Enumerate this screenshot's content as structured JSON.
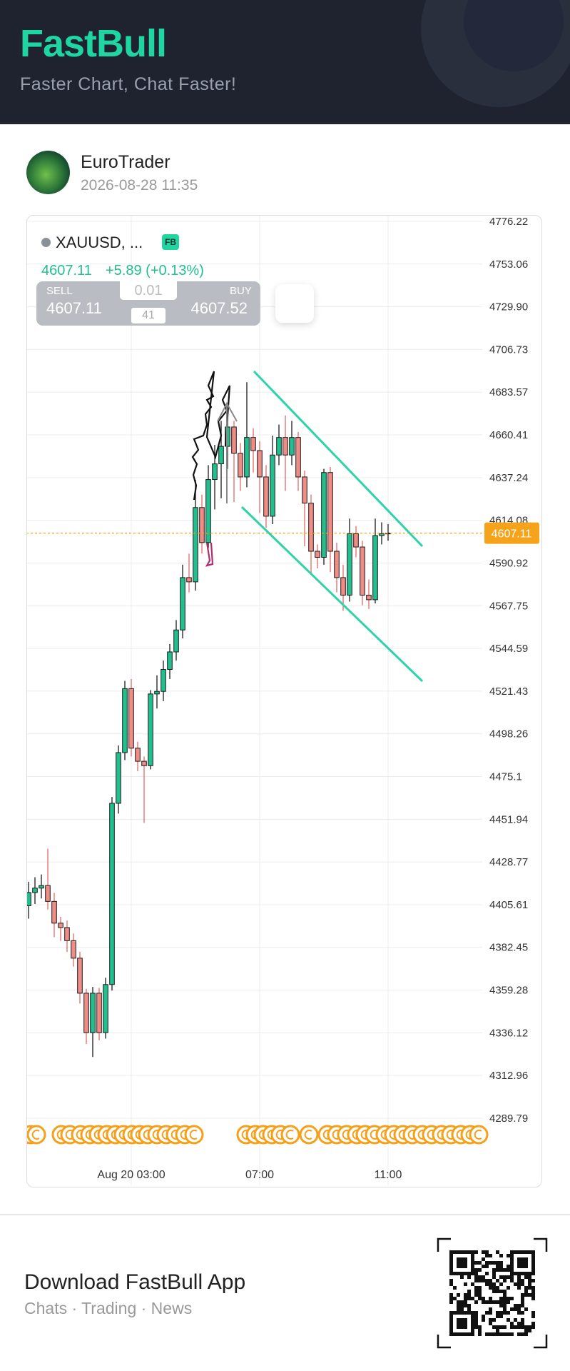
{
  "header": {
    "title": "FastBull",
    "subtitle": "Faster Chart, Chat Faster!"
  },
  "post": {
    "author": "EuroTrader",
    "date": "2026-08-28 11:35"
  },
  "ticker": {
    "symbol": "XAUUSD, ...",
    "badge": "FB",
    "price": "4607.11",
    "change": "+5.89 (+0.13%)"
  },
  "trade": {
    "sell_label": "SELL",
    "sell_price": "4607.11",
    "lot": "0.01",
    "spread": "41",
    "buy_label": "BUY",
    "buy_price": "4607.52"
  },
  "chart_data": {
    "type": "candlestick",
    "categories": [
      null,
      null,
      null,
      null,
      null,
      null,
      null,
      null,
      null,
      null,
      null,
      null,
      null,
      null,
      null,
      null,
      "Aug 20 03:00",
      null,
      null,
      null,
      null,
      null,
      null,
      null,
      null,
      null,
      null,
      null,
      null,
      null,
      null,
      null,
      null,
      null,
      null,
      null,
      "07:00",
      null,
      null,
      null,
      null,
      null,
      null,
      null,
      null,
      null,
      null,
      null,
      null,
      null,
      null,
      null,
      null,
      null,
      null,
      null,
      "11:00"
    ],
    "open": [
      4405.0,
      4412.2,
      4414.6,
      4416.0,
      4407.4,
      4395.6,
      4393.2,
      4386.1,
      4376.6,
      4357.6,
      4336.2,
      4357.6,
      4336.2,
      4362.3,
      4460.6,
      4488.1,
      4522.8,
      4490.5,
      4483.4,
      4481.0,
      4519.9,
      4521.3,
      4533.2,
      4542.7,
      4554.6,
      4583.0,
      4580.7,
      4621.0,
      4602.0,
      4636.2,
      4644.7,
      4654.2,
      4664.7,
      4650.4,
      4637.6,
      4659.0,
      4651.9,
      4637.6,
      4616.3,
      4649.5,
      4659.0,
      4649.5,
      4659.0,
      4637.6,
      4623.4,
      4597.3,
      4594.0,
      4640.0,
      4597.3,
      4583.0,
      4573.5,
      4606.8,
      4599.6,
      4573.5,
      4571.0,
      4605.8,
      4606.8
    ],
    "high": [
      4418.0,
      4420.5,
      4422.0,
      4436.0,
      4412.0,
      4399.0,
      4397.0,
      4390.0,
      4380.0,
      4360.0,
      4361.0,
      4360.5,
      4366.0,
      4464.0,
      4492.0,
      4527.0,
      4528.0,
      4494.0,
      4486.0,
      4522.0,
      4530.0,
      4538.0,
      4547.0,
      4560.0,
      4590.0,
      4596.0,
      4636.0,
      4628.0,
      4644.0,
      4655.0,
      4668.0,
      4672.0,
      4668.0,
      4656.0,
      4689.0,
      4664.0,
      4657.0,
      4644.0,
      4660.0,
      4666.0,
      4671.0,
      4668.0,
      4662.0,
      4641.0,
      4628.0,
      4601.0,
      4642.0,
      4643.0,
      4602.0,
      4590.0,
      4615.0,
      4611.0,
      4603.0,
      4582.0,
      4615.0,
      4613.0,
      4612.0
    ],
    "low": [
      4398.0,
      4406.0,
      4409.0,
      4403.0,
      4388.0,
      4386.0,
      4380.0,
      4372.0,
      4352.0,
      4330.0,
      4323.0,
      4332.0,
      4333.0,
      4359.0,
      4455.0,
      4484.0,
      4486.0,
      4478.0,
      4450.0,
      4479.0,
      4512.0,
      4516.0,
      4528.0,
      4538.0,
      4550.0,
      4575.0,
      4576.0,
      4596.0,
      4599.0,
      4620.0,
      4626.0,
      4642.0,
      4624.0,
      4630.0,
      4632.0,
      4640.0,
      4618.0,
      4610.0,
      4612.0,
      4644.0,
      4630.0,
      4644.0,
      4630.0,
      4600.0,
      4585.0,
      4588.0,
      4590.0,
      4586.0,
      4575.0,
      4565.0,
      4570.0,
      4594.0,
      4568.0,
      4566.0,
      4569.0,
      4601.0,
      4603.0
    ],
    "close": [
      4412.2,
      4414.6,
      4416.0,
      4407.4,
      4395.6,
      4393.2,
      4386.1,
      4376.6,
      4357.6,
      4336.2,
      4357.6,
      4336.2,
      4362.3,
      4460.6,
      4488.1,
      4522.8,
      4490.5,
      4483.4,
      4481.0,
      4519.9,
      4521.3,
      4533.2,
      4542.7,
      4554.6,
      4583.0,
      4580.7,
      4621.0,
      4602.0,
      4636.2,
      4644.7,
      4654.2,
      4664.7,
      4650.4,
      4637.6,
      4659.0,
      4651.9,
      4637.6,
      4616.3,
      4649.5,
      4659.0,
      4649.5,
      4659.0,
      4637.6,
      4623.4,
      4597.3,
      4594.0,
      4640.0,
      4597.3,
      4583.0,
      4573.5,
      4606.8,
      4599.6,
      4573.5,
      4571.0,
      4605.8,
      4606.8,
      4607.11
    ],
    "ylim": [
      4289.79,
      4776.22
    ],
    "yticks": [
      4776.22,
      4753.06,
      {
        "value": 4729.9,
        "label": "4729.90"
      },
      4706.73,
      4683.57,
      4660.41,
      4637.24,
      4614.08,
      4590.92,
      4567.75,
      4544.59,
      4521.43,
      4498.26,
      4475.1,
      4451.94,
      4428.77,
      4405.61,
      4382.45,
      4359.28,
      4336.12,
      4312.96,
      4289.79
    ],
    "grid": true,
    "up_color": "#22bf8e",
    "down_color": "#f08c86",
    "last_price": 4607.11,
    "last_price_color": "#f5a31a"
  },
  "footer": {
    "title": "Download FastBull App",
    "subtitle": "Chats · Trading · News"
  }
}
